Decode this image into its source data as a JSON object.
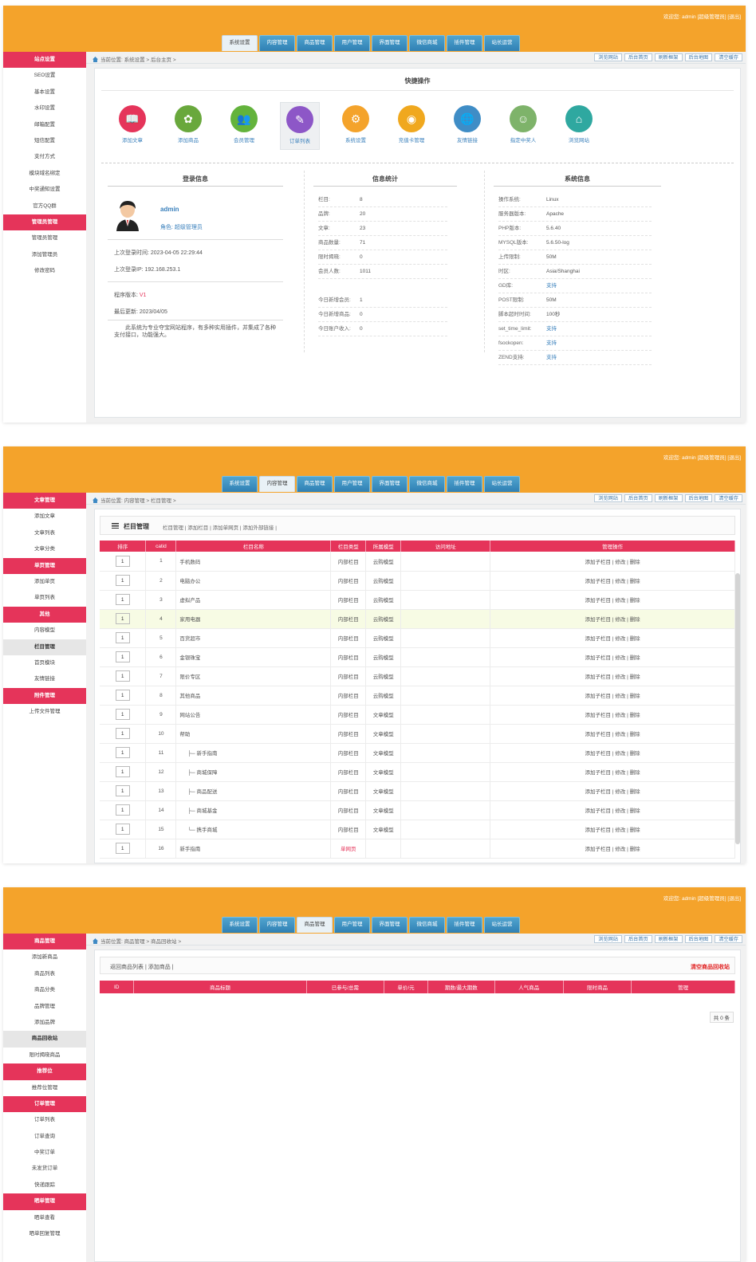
{
  "header": {
    "welcome": "欢迎您:  admin [超级管理员]  [退出]",
    "tabs": [
      "系统设置",
      "内容管理",
      "商品管理",
      "用户管理",
      "界面管理",
      "微信商城",
      "插件管理",
      "站长运营"
    ]
  },
  "quick_buttons": [
    "浏览网站",
    "后台首页",
    "刷新框架",
    "后台地图",
    "清空缓存"
  ],
  "panel1": {
    "breadcrumb": "当前位置: 系统设置 > 后台主页 >",
    "sidebar": [
      "站点设置",
      "SEO设置",
      "基本设置",
      "水印设置",
      "邮箱配置",
      "短信配置",
      "支付方式",
      "模块域名绑定",
      "中奖通知设置",
      "官方QQ群",
      "管理员管理",
      "管理员管理",
      "添加管理员",
      "修改密码"
    ],
    "quick_title": "快捷操作",
    "quick_actions": [
      {
        "label": "添加文章",
        "icon": "book-icon",
        "color": "#e5345a"
      },
      {
        "label": "添加商品",
        "icon": "sunflower-icon",
        "color": "#69a83c"
      },
      {
        "label": "会员管理",
        "icon": "users-icon",
        "color": "#63b33c"
      },
      {
        "label": "订单列表",
        "icon": "edit-note-icon",
        "color": "#8d57c7"
      },
      {
        "label": "系统设置",
        "icon": "gear-icon",
        "color": "#f4a32b"
      },
      {
        "label": "充值卡管理",
        "icon": "coin-icon",
        "color": "#f0a81e"
      },
      {
        "label": "友情链接",
        "icon": "globe-link-icon",
        "color": "#3f8dc6"
      },
      {
        "label": "指定中奖人",
        "icon": "person-icon",
        "color": "#7eb36a"
      },
      {
        "label": "浏览网站",
        "icon": "house-icon",
        "color": "#2fa8a0"
      }
    ],
    "login": {
      "title": "登录信息",
      "user": "admin",
      "role": "角色: 超级管理员",
      "last_time": "上次登录时间: 2023-04-05 22:29:44",
      "last_ip": "上次登录IP: 192.168.253.1",
      "version_label": "程序版本: ",
      "version": "V1",
      "updated": "最后更新: 2023/04/05",
      "desc": "此系统为专业夺宝网站程序，有多种实用插件，并集成了各种支付接口，功能强大。"
    },
    "stats": {
      "title": "信息统计",
      "rows": [
        {
          "k": "栏目:",
          "v": "8"
        },
        {
          "k": "品牌:",
          "v": "20"
        },
        {
          "k": "文章:",
          "v": "23"
        },
        {
          "k": "商品数量:",
          "v": "71"
        },
        {
          "k": "限时揭晓:",
          "v": "0"
        },
        {
          "k": "会员人数:",
          "v": "1011"
        }
      ],
      "rows2": [
        {
          "k": "今日新增会员:",
          "v": "1"
        },
        {
          "k": "今日新增商品:",
          "v": "0"
        },
        {
          "k": "今日账户收入:",
          "v": "0"
        }
      ]
    },
    "sys": {
      "title": "系统信息",
      "rows": [
        {
          "k": "操作系统:",
          "v": "Linux"
        },
        {
          "k": "服务器版本:",
          "v": "Apache"
        },
        {
          "k": "PHP版本:",
          "v": "5.6.40"
        },
        {
          "k": "MYSQL版本:",
          "v": "5.6.50-log"
        },
        {
          "k": "上传限制:",
          "v": "50M"
        },
        {
          "k": "时区:",
          "v": "Asia/Shanghai"
        },
        {
          "k": "GD库:",
          "v": "支持"
        },
        {
          "k": "POST限制:",
          "v": "50M"
        },
        {
          "k": "脚本超时时间:",
          "v": "100秒"
        },
        {
          "k": "set_time_limit:",
          "v": "支持"
        },
        {
          "k": "fsockopen:",
          "v": "支持"
        },
        {
          "k": "ZEND支持:",
          "v": "支持"
        }
      ]
    }
  },
  "panel2": {
    "breadcrumb": "当前位置: 内容管理 > 栏目管理 >",
    "sidebar": [
      "文章管理",
      "添加文章",
      "文章列表",
      "文章分类",
      "单页管理",
      "添加单页",
      "单页列表",
      "其他",
      "内容模型",
      "栏目管理",
      "首页模块",
      "友情链接",
      "附件管理",
      "上传文件管理"
    ],
    "title": "栏目管理",
    "links": "栏目管理 | 添加栏目 | 添加单网页 | 添加外部链接 |",
    "headers": [
      "排序",
      "catid",
      "栏目名称",
      "栏目类型",
      "所属模型",
      "访问地址",
      "管理操作"
    ],
    "ops": "添加子栏目  |  修改  |  删除",
    "rows": [
      {
        "order": "1",
        "catid": "1",
        "name": "手机数码",
        "type": "内部栏目",
        "model": "云购模型"
      },
      {
        "order": "1",
        "catid": "2",
        "name": "电脑办公",
        "type": "内部栏目",
        "model": "云购模型"
      },
      {
        "order": "1",
        "catid": "3",
        "name": "虚拟产品",
        "type": "内部栏目",
        "model": "云购模型"
      },
      {
        "order": "1",
        "catid": "4",
        "name": "家用电器",
        "type": "内部栏目",
        "model": "云购模型"
      },
      {
        "order": "1",
        "catid": "5",
        "name": "百货超市",
        "type": "内部栏目",
        "model": "云购模型"
      },
      {
        "order": "1",
        "catid": "6",
        "name": "金银珠宝",
        "type": "内部栏目",
        "model": "云购模型"
      },
      {
        "order": "1",
        "catid": "7",
        "name": "限价专区",
        "type": "内部栏目",
        "model": "云购模型"
      },
      {
        "order": "1",
        "catid": "8",
        "name": "其他商品",
        "type": "内部栏目",
        "model": "云购模型"
      },
      {
        "order": "1",
        "catid": "9",
        "name": "网站公告",
        "type": "内部栏目",
        "model": "文章模型"
      },
      {
        "order": "1",
        "catid": "10",
        "name": "帮助",
        "type": "内部栏目",
        "model": "文章模型"
      },
      {
        "order": "1",
        "catid": "11",
        "name": "├─ 新手指南",
        "type": "内部栏目",
        "model": "文章模型"
      },
      {
        "order": "1",
        "catid": "12",
        "name": "├─ 商城保障",
        "type": "内部栏目",
        "model": "文章模型"
      },
      {
        "order": "1",
        "catid": "13",
        "name": "├─ 商品配送",
        "type": "内部栏目",
        "model": "文章模型"
      },
      {
        "order": "1",
        "catid": "14",
        "name": "├─ 商城基金",
        "type": "内部栏目",
        "model": "文章模型"
      },
      {
        "order": "1",
        "catid": "15",
        "name": "└─ 携手商城",
        "type": "内部栏目",
        "model": "文章模型"
      },
      {
        "order": "1",
        "catid": "16",
        "name": "新手指南",
        "type": "单网页",
        "model": ""
      }
    ]
  },
  "panel3": {
    "breadcrumb": "当前位置: 商品管理 > 商品回收站 >",
    "sidebar": [
      "商品管理",
      "添加新商品",
      "商品列表",
      "商品分类",
      "品牌管理",
      "添加品牌",
      "商品回收站",
      "限时揭晓商品",
      "推荐位",
      "推荐位管理",
      "订单管理",
      "订单列表",
      "订单查询",
      "中奖订单",
      "未发货订单",
      "快递跟踪",
      "晒单管理",
      "晒单查看",
      "晒单回复管理"
    ],
    "links": "返回商品列表 | 添加商品 |",
    "clear": "清空商品回收站",
    "headers": [
      "ID",
      "商品标题",
      "已参与/总需",
      "单价/元",
      "期数/最大期数",
      "人气商品",
      "限时商品",
      "管理"
    ],
    "total": "共 0 条"
  }
}
